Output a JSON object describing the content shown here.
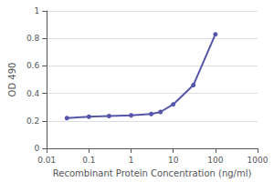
{
  "chart_data": {
    "type": "line",
    "x": [
      0.03,
      0.1,
      0.3,
      1,
      3,
      5,
      10,
      30,
      100
    ],
    "values": [
      0.22,
      0.23,
      0.235,
      0.24,
      0.25,
      0.265,
      0.32,
      0.46,
      0.83
    ],
    "xlabel": "Recombinant Protein Concentration (ng/ml)",
    "ylabel": "OD 490",
    "log": "x",
    "xlim": [
      0.01,
      1000
    ],
    "ylim": [
      0,
      1
    ],
    "xticks": [
      0.01,
      0.1,
      1,
      10,
      100,
      1000
    ],
    "yticks": [
      0,
      0.2,
      0.4,
      0.6,
      0.8,
      1
    ],
    "color": "#5555aa",
    "marker": "circle",
    "grid": "y"
  }
}
